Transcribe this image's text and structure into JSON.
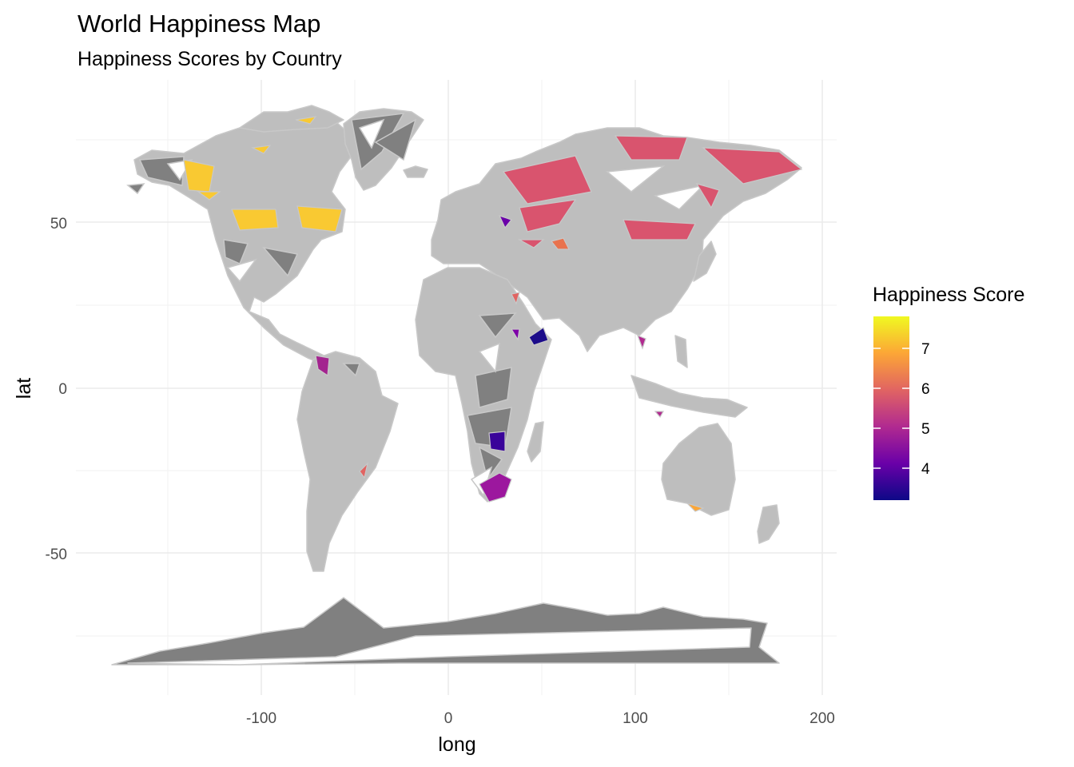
{
  "title": "World Happiness Map",
  "subtitle": "Happiness Scores by Country",
  "chart_data": {
    "type": "heatmap",
    "projection": "long/lat (plate carree)",
    "xlabel": "long",
    "ylabel": "lat",
    "xlim": [
      -190,
      210
    ],
    "ylim": [
      -87,
      88
    ],
    "x_ticks": [
      -100,
      0,
      100,
      200
    ],
    "y_ticks": [
      -50,
      0,
      50
    ],
    "x_tick_labels": [
      "-100",
      "0",
      "100",
      "200"
    ],
    "y_tick_labels": [
      "-50",
      "0",
      "50"
    ],
    "grid": true,
    "legend": {
      "title": "Happiness Score",
      "position": "right",
      "range": [
        3.2,
        7.8
      ],
      "breaks": [
        4,
        5,
        6,
        7
      ],
      "break_labels": [
        "4",
        "5",
        "6",
        "7"
      ],
      "palette": "plasma",
      "colors": [
        "#0d0887",
        "#6a00a8",
        "#b12a90",
        "#e16462",
        "#fca636",
        "#f0f921"
      ]
    },
    "colors": {
      "no_data_fill": "#bebebe",
      "artifact_fill": "#808080",
      "border": "#c8c8c8",
      "grid": "#ebebeb"
    },
    "regions": [
      {
        "name": "Canada",
        "score": 7.0
      },
      {
        "name": "Russia",
        "score": 5.5
      },
      {
        "name": "Kazakhstan",
        "score": 6.1
      },
      {
        "name": "Venezuela",
        "score": 4.9
      },
      {
        "name": "Zimbabwe",
        "score": 3.6
      },
      {
        "name": "South Africa",
        "score": 4.8
      },
      {
        "name": "Somalia",
        "score": 3.3
      },
      {
        "name": "Egypt",
        "score": 4.2
      }
    ]
  }
}
